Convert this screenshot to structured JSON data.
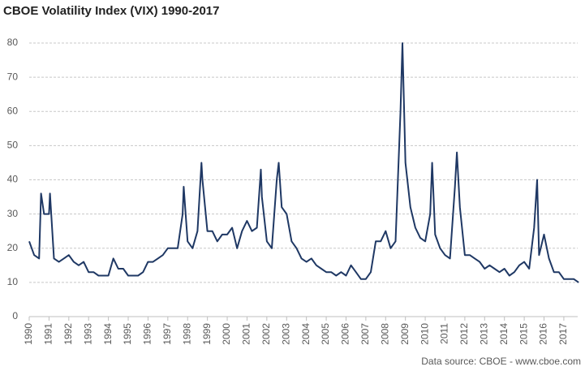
{
  "chart_data": {
    "type": "line",
    "title": "CBOE Volatility Index (VIX) 1990-2017",
    "source": "Data source: CBOE - www.cboe.com",
    "x": [
      1990.0,
      1990.25,
      1990.5,
      1990.6,
      1990.75,
      1991.0,
      1991.05,
      1991.25,
      1991.5,
      1991.75,
      1992.0,
      1992.25,
      1992.5,
      1992.75,
      1993.0,
      1993.25,
      1993.5,
      1993.75,
      1994.0,
      1994.25,
      1994.5,
      1994.75,
      1995.0,
      1995.25,
      1995.5,
      1995.75,
      1996.0,
      1996.25,
      1996.5,
      1996.75,
      1997.0,
      1997.25,
      1997.5,
      1997.75,
      1997.8,
      1998.0,
      1998.25,
      1998.5,
      1998.7,
      1998.75,
      1999.0,
      1999.25,
      1999.5,
      1999.75,
      2000.0,
      2000.25,
      2000.5,
      2000.75,
      2001.0,
      2001.25,
      2001.5,
      2001.7,
      2001.75,
      2002.0,
      2002.25,
      2002.5,
      2002.6,
      2002.75,
      2003.0,
      2003.25,
      2003.5,
      2003.75,
      2004.0,
      2004.25,
      2004.5,
      2004.75,
      2005.0,
      2005.25,
      2005.5,
      2005.75,
      2006.0,
      2006.25,
      2006.5,
      2006.75,
      2007.0,
      2007.25,
      2007.5,
      2007.75,
      2008.0,
      2008.25,
      2008.5,
      2008.75,
      2008.85,
      2009.0,
      2009.25,
      2009.5,
      2009.75,
      2010.0,
      2010.25,
      2010.35,
      2010.5,
      2010.75,
      2011.0,
      2011.25,
      2011.5,
      2011.6,
      2011.75,
      2012.0,
      2012.25,
      2012.5,
      2012.75,
      2013.0,
      2013.25,
      2013.5,
      2013.75,
      2014.0,
      2014.25,
      2014.5,
      2014.75,
      2015.0,
      2015.25,
      2015.5,
      2015.65,
      2015.75,
      2016.0,
      2016.25,
      2016.5,
      2016.75,
      2017.0,
      2017.25,
      2017.5,
      2017.75
    ],
    "series": [
      {
        "name": "VIX",
        "color": "#1f3864",
        "values": [
          22,
          18,
          17,
          36,
          30,
          30,
          36,
          17,
          16,
          17,
          18,
          16,
          15,
          16,
          13,
          13,
          12,
          12,
          12,
          17,
          14,
          14,
          12,
          12,
          12,
          13,
          16,
          16,
          17,
          18,
          20,
          20,
          20,
          30,
          38,
          22,
          20,
          25,
          45,
          40,
          25,
          25,
          22,
          24,
          24,
          26,
          20,
          25,
          28,
          25,
          26,
          43,
          35,
          22,
          20,
          40,
          45,
          32,
          30,
          22,
          20,
          17,
          16,
          17,
          15,
          14,
          13,
          13,
          12,
          13,
          12,
          15,
          13,
          11,
          11,
          13,
          22,
          22,
          25,
          20,
          22,
          60,
          80,
          45,
          32,
          26,
          23,
          22,
          30,
          45,
          24,
          20,
          18,
          17,
          38,
          48,
          32,
          18,
          18,
          17,
          16,
          14,
          15,
          14,
          13,
          14,
          12,
          13,
          15,
          16,
          14,
          26,
          40,
          18,
          24,
          17,
          13,
          13,
          11,
          11,
          11,
          10
        ]
      }
    ],
    "xlim": [
      1990,
      2017.7
    ],
    "xticks": [
      1990,
      1991,
      1992,
      1993,
      1994,
      1995,
      1996,
      1997,
      1998,
      1999,
      2000,
      2001,
      2002,
      2003,
      2004,
      2005,
      2006,
      2007,
      2008,
      2009,
      2010,
      2011,
      2012,
      2013,
      2014,
      2015,
      2016,
      2017
    ],
    "ylim": [
      0,
      85
    ],
    "yticks": [
      0,
      10,
      20,
      30,
      40,
      50,
      60,
      70,
      80
    ],
    "grid": true
  }
}
